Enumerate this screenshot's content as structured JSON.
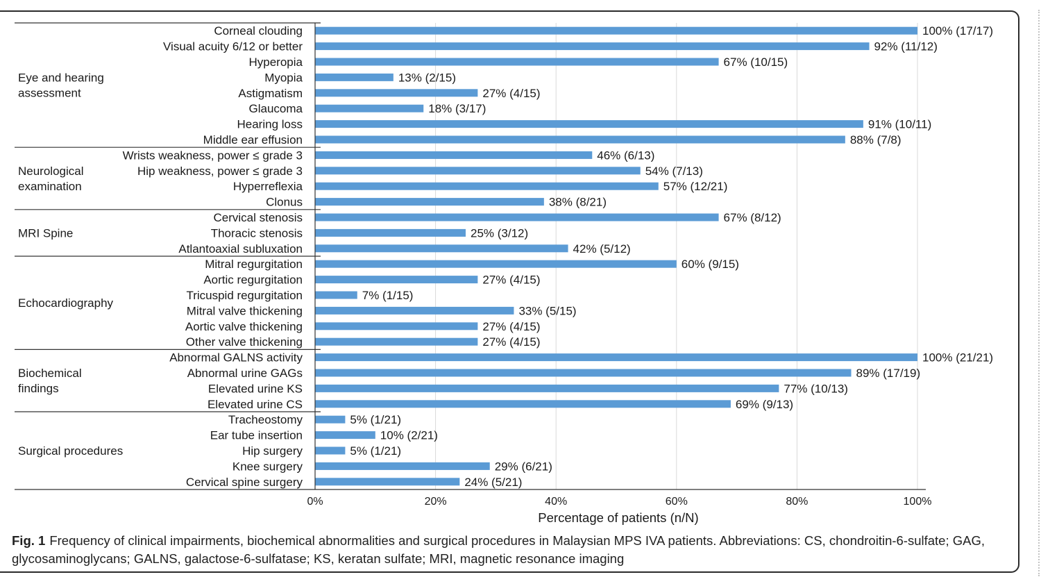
{
  "colors": {
    "bar": "#5b9bd5",
    "grid": "#d9d9d9",
    "axis": "#333333",
    "text": "#1a1a1a"
  },
  "chart_data": {
    "type": "bar",
    "orientation": "horizontal",
    "xlabel": "Percentage of patients (n/N)",
    "xlim": [
      0,
      100
    ],
    "x_ticks": [
      "0%",
      "20%",
      "40%",
      "60%",
      "80%",
      "100%"
    ],
    "grid": "vertical",
    "groups": [
      {
        "name": "Eye and hearing assessment",
        "categories": [
          "Corneal clouding",
          "Visual acuity 6/12 or better",
          "Hyperopia",
          "Myopia",
          "Astigmatism",
          "Glaucoma",
          "Hearing loss",
          "Middle ear effusion"
        ]
      },
      {
        "name": "Neurological examination",
        "categories": [
          "Wrists weakness, power ≤ grade 3",
          "Hip weakness, power ≤ grade 3",
          "Hyperreflexia",
          "Clonus"
        ]
      },
      {
        "name": "MRI Spine",
        "categories": [
          "Cervical stenosis",
          "Thoracic stenosis",
          "Atlantoaxial subluxation"
        ]
      },
      {
        "name": "Echocardiography",
        "categories": [
          "Mitral regurgitation",
          "Aortic regurgitation",
          "Tricuspid regurgitation",
          "Mitral valve thickening",
          "Aortic valve thickening",
          "Other valve thickening"
        ]
      },
      {
        "name": "Biochemical findings",
        "categories": [
          "Abnormal GALNS activity",
          "Abnormal urine GAGs",
          "Elevated urine KS",
          "Elevated urine CS"
        ]
      },
      {
        "name": "Surgical procedures",
        "categories": [
          "Tracheostomy",
          "Ear tube insertion",
          "Hip surgery",
          "Knee surgery",
          "Cervical spine surgery"
        ]
      }
    ],
    "categories": [
      "Corneal clouding",
      "Visual acuity 6/12 or better",
      "Hyperopia",
      "Myopia",
      "Astigmatism",
      "Glaucoma",
      "Hearing loss",
      "Middle ear effusion",
      "Wrists weakness, power ≤ grade 3",
      "Hip weakness, power ≤ grade 3",
      "Hyperreflexia",
      "Clonus",
      "Cervical stenosis",
      "Thoracic stenosis",
      "Atlantoaxial subluxation",
      "Mitral regurgitation",
      "Aortic regurgitation",
      "Tricuspid regurgitation",
      "Mitral valve thickening",
      "Aortic valve thickening",
      "Other valve thickening",
      "Abnormal GALNS activity",
      "Abnormal urine GAGs",
      "Elevated urine KS",
      "Elevated urine CS",
      "Tracheostomy",
      "Ear tube insertion",
      "Hip surgery",
      "Knee surgery",
      "Cervical spine surgery"
    ],
    "values": [
      100,
      92,
      67,
      13,
      27,
      18,
      91,
      88,
      46,
      54,
      57,
      38,
      67,
      25,
      42,
      60,
      27,
      7,
      33,
      27,
      27,
      100,
      89,
      77,
      69,
      5,
      10,
      5,
      29,
      24
    ],
    "data_labels": [
      "100% (17/17)",
      "92% (11/12)",
      "67% (10/15)",
      "13% (2/15)",
      "27% (4/15)",
      "18% (3/17)",
      "91% (10/11)",
      "88% (7/8)",
      "46% (6/13)",
      "54% (7/13)",
      "57% (12/21)",
      "38% (8/21)",
      "67% (8/12)",
      "25% (3/12)",
      "42% (5/12)",
      "60% (9/15)",
      "27% (4/15)",
      "7% (1/15)",
      "33% (5/15)",
      "27% (4/15)",
      "27% (4/15)",
      "100% (21/21)",
      "89% (17/19)",
      "77% (10/13)",
      "69% (9/13)",
      "5% (1/21)",
      "10% (2/21)",
      "5% (1/21)",
      "29% (6/21)",
      "24% (5/21)"
    ]
  },
  "caption": {
    "label": "Fig. 1",
    "text": "Frequency of clinical impairments, biochemical abnormalities and surgical procedures in Malaysian MPS IVA patients. Abbreviations: CS, chondroitin-6-sulfate; GAG, glycosaminoglycans; GALNS, galactose-6-sulfatase; KS, keratan sulfate; MRI, magnetic resonance imaging"
  }
}
